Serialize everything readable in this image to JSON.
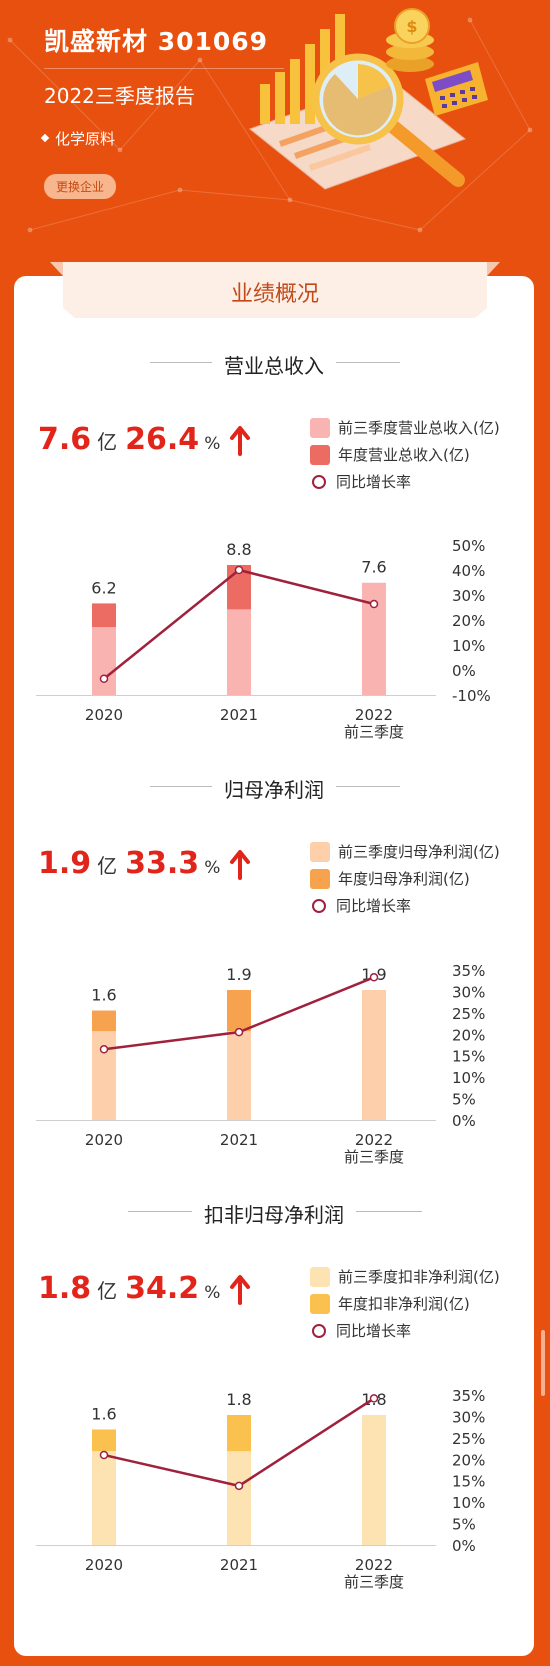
{
  "header": {
    "title": "凯盛新材 301069",
    "subtitle": "2022三季度报告",
    "industry": "化学原料",
    "switch_button": "更换企业"
  },
  "section_banner": "业绩概况",
  "colors": {
    "background": "#E8500F",
    "accent": "#E1251B",
    "line": "#A0213D"
  },
  "sections": [
    {
      "title": "营业总收入",
      "kpi": {
        "value": "7.6",
        "unit": "亿",
        "growth": "26.4",
        "growth_unit": "%"
      },
      "legend": [
        "前三季度营业总收入(亿)",
        "年度营业总收入(亿)",
        "同比增长率"
      ]
    },
    {
      "title": "归母净利润",
      "kpi": {
        "value": "1.9",
        "unit": "亿",
        "growth": "33.3",
        "growth_unit": "%"
      },
      "legend": [
        "前三季度归母净利润(亿)",
        "年度归母净利润(亿)",
        "同比增长率"
      ]
    },
    {
      "title": "扣非归母净利润",
      "kpi": {
        "value": "1.8",
        "unit": "亿",
        "growth": "34.2",
        "growth_unit": "%"
      },
      "legend": [
        "前三季度扣非净利润(亿)",
        "年度扣非净利润(亿)",
        "同比增长率"
      ]
    }
  ],
  "chart_data": [
    {
      "type": "bar",
      "title": "营业总收入",
      "categories": [
        "2020",
        "2021",
        "2022\n前三季度"
      ],
      "series": [
        {
          "name": "前三季度营业总收入(亿)",
          "values": [
            4.6,
            5.8,
            7.6
          ],
          "color": "#F9B3B1"
        },
        {
          "name": "年度营业总收入(亿)",
          "values": [
            6.2,
            8.8,
            null
          ],
          "color": "#EC6B62"
        },
        {
          "name": "同比增长率",
          "values": [
            -3.5,
            40,
            26.4
          ],
          "axis": "right",
          "color": "#A0213D"
        }
      ],
      "bar_labels": [
        "6.2",
        "8.8",
        "7.6"
      ],
      "y_right_ticks": [
        "50%",
        "40%",
        "30%",
        "20%",
        "10%",
        "0%",
        "-10%"
      ],
      "y_right_range": [
        -10,
        50
      ]
    },
    {
      "type": "bar",
      "title": "归母净利润",
      "categories": [
        "2020",
        "2021",
        "2022\n前三季度"
      ],
      "series": [
        {
          "name": "前三季度归母净利润(亿)",
          "values": [
            1.3,
            1.3,
            1.9
          ],
          "color": "#FDCFAB"
        },
        {
          "name": "年度归母净利润(亿)",
          "values": [
            1.6,
            1.9,
            null
          ],
          "color": "#F7A24F"
        },
        {
          "name": "同比增长率",
          "values": [
            16.5,
            20.5,
            33.3
          ],
          "axis": "right",
          "color": "#A0213D"
        }
      ],
      "bar_labels": [
        "1.6",
        "1.9",
        "1.9"
      ],
      "y_right_ticks": [
        "35%",
        "30%",
        "25%",
        "20%",
        "15%",
        "10%",
        "5%",
        "0%"
      ],
      "y_right_range": [
        0,
        35
      ]
    },
    {
      "type": "bar",
      "title": "扣非归母净利润",
      "categories": [
        "2020",
        "2021",
        "2022\n前三季度"
      ],
      "series": [
        {
          "name": "前三季度扣非净利润(亿)",
          "values": [
            1.3,
            1.3,
            1.8
          ],
          "color": "#FDE2B2"
        },
        {
          "name": "年度扣非净利润(亿)",
          "values": [
            1.6,
            1.8,
            null
          ],
          "color": "#FBC14E"
        },
        {
          "name": "同比增长率",
          "values": [
            21,
            13.8,
            34.2
          ],
          "axis": "right",
          "color": "#A0213D"
        }
      ],
      "bar_labels": [
        "1.6",
        "1.8",
        "1.8"
      ],
      "y_right_ticks": [
        "35%",
        "30%",
        "25%",
        "20%",
        "15%",
        "10%",
        "5%",
        "0%"
      ],
      "y_right_range": [
        0,
        35
      ]
    }
  ]
}
